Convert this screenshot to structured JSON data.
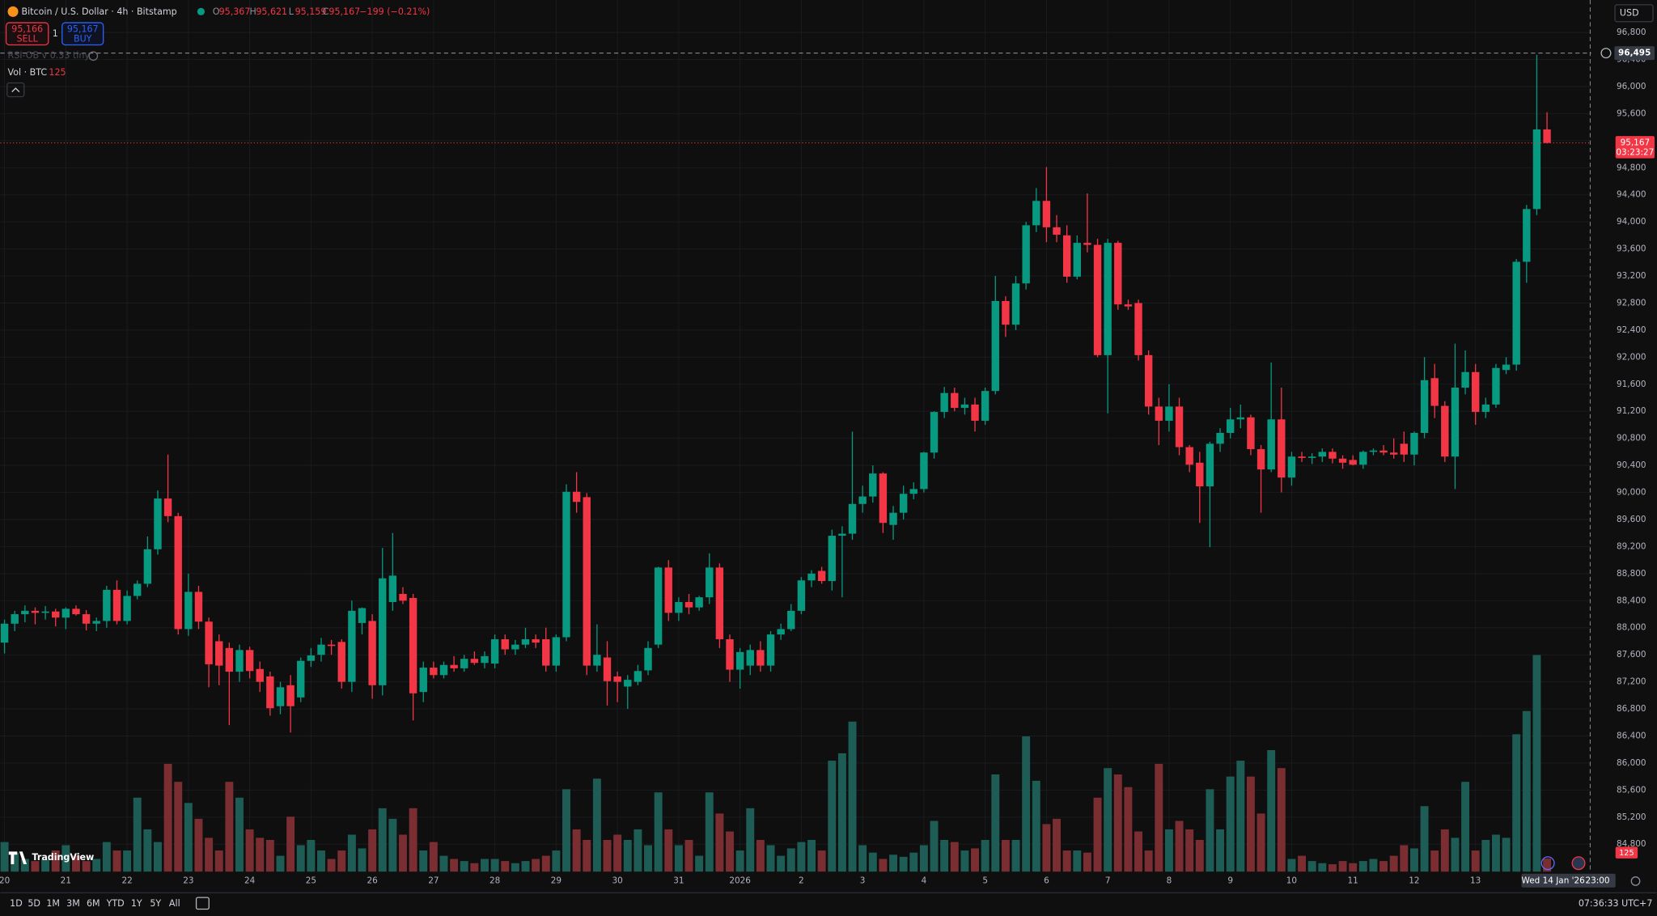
{
  "header": {
    "title": "Bitcoin / U.S. Dollar · 4h · Bitstamp",
    "ohlc": [
      {
        "key": "O",
        "value": "95,367"
      },
      {
        "key": "H",
        "value": "95,621"
      },
      {
        "key": "L",
        "value": "95,159"
      },
      {
        "key": "C",
        "value": "95,167"
      }
    ],
    "change": "−199 (−0.21%)",
    "sell_price": "95,166",
    "sell": "SELL",
    "spread": "1",
    "buy_price": "95,167",
    "buy": "BUY",
    "indicator": "RSI-OB v 0.33 tiny",
    "volume_title": "Vol · BTC",
    "currency": "USD"
  },
  "chart_data": {
    "type": "candlestick",
    "x_labels": [
      "20",
      "21",
      "22",
      "23",
      "24",
      "25",
      "26",
      "27",
      "28",
      "29",
      "30",
      "31",
      "2026",
      "2",
      "3",
      "4",
      "5",
      "6",
      "7",
      "8",
      "9",
      "10",
      "11",
      "12",
      "13"
    ],
    "ohlc": [
      [
        87780,
        88120,
        87620,
        88060
      ],
      [
        88060,
        88250,
        87950,
        88200
      ],
      [
        88200,
        88330,
        88080,
        88250
      ],
      [
        88250,
        88300,
        88050,
        88220
      ],
      [
        88220,
        88320,
        88120,
        88240
      ],
      [
        88240,
        88280,
        88020,
        88150
      ],
      [
        88150,
        88300,
        87980,
        88280
      ],
      [
        88280,
        88330,
        88180,
        88200
      ],
      [
        88200,
        88260,
        87960,
        88060
      ],
      [
        88060,
        88150,
        87950,
        88100
      ],
      [
        88100,
        88620,
        88000,
        88560
      ],
      [
        88560,
        88700,
        88050,
        88100
      ],
      [
        88100,
        88550,
        88050,
        88470
      ],
      [
        88470,
        88700,
        88420,
        88650
      ],
      [
        88650,
        89350,
        88600,
        89160
      ],
      [
        89160,
        90030,
        89080,
        89910
      ],
      [
        89910,
        90560,
        89560,
        89650
      ],
      [
        89650,
        89700,
        87900,
        87980
      ],
      [
        87980,
        88800,
        87880,
        88530
      ],
      [
        88530,
        88620,
        87980,
        88090
      ],
      [
        88090,
        88150,
        87120,
        87460
      ],
      [
        87800,
        87900,
        87150,
        87440
      ],
      [
        87700,
        87780,
        86560,
        87350
      ],
      [
        87350,
        87750,
        87200,
        87670
      ],
      [
        87670,
        87720,
        87250,
        87360
      ],
      [
        87390,
        87500,
        87050,
        87200
      ],
      [
        87280,
        87350,
        86700,
        86810
      ],
      [
        86840,
        87200,
        86720,
        87120
      ],
      [
        87150,
        87300,
        86450,
        86840
      ],
      [
        86970,
        87560,
        86900,
        87510
      ],
      [
        87510,
        87700,
        87420,
        87590
      ],
      [
        87600,
        87850,
        87500,
        87750
      ],
      [
        87750,
        87820,
        87600,
        87730
      ],
      [
        87790,
        87830,
        87100,
        87200
      ],
      [
        87200,
        88400,
        87050,
        88250
      ],
      [
        88070,
        88300,
        87900,
        88290
      ],
      [
        88100,
        88200,
        86950,
        87150
      ],
      [
        87150,
        89180,
        87000,
        88730
      ],
      [
        88380,
        89400,
        88250,
        88770
      ],
      [
        88500,
        88600,
        88350,
        88400
      ],
      [
        88440,
        88500,
        86630,
        87030
      ],
      [
        87050,
        87500,
        86900,
        87410
      ],
      [
        87410,
        87500,
        87250,
        87300
      ],
      [
        87300,
        87500,
        87250,
        87450
      ],
      [
        87450,
        87580,
        87350,
        87400
      ],
      [
        87400,
        87600,
        87350,
        87540
      ],
      [
        87540,
        87650,
        87450,
        87480
      ],
      [
        87480,
        87650,
        87400,
        87580
      ],
      [
        87470,
        87900,
        87400,
        87830
      ],
      [
        87830,
        87900,
        87600,
        87680
      ],
      [
        87680,
        87820,
        87600,
        87750
      ],
      [
        87750,
        88000,
        87700,
        87830
      ],
      [
        87830,
        87900,
        87700,
        87780
      ],
      [
        87830,
        88000,
        87350,
        87440
      ],
      [
        87440,
        87900,
        87350,
        87860
      ],
      [
        87860,
        90120,
        87800,
        90010
      ],
      [
        90010,
        90300,
        89700,
        89860
      ],
      [
        89930,
        89990,
        87300,
        87440
      ],
      [
        87440,
        88050,
        87350,
        87600
      ],
      [
        87560,
        87800,
        86850,
        87210
      ],
      [
        87280,
        87350,
        86900,
        87200
      ],
      [
        87130,
        87300,
        86800,
        87230
      ],
      [
        87200,
        87450,
        87150,
        87360
      ],
      [
        87370,
        87800,
        87300,
        87700
      ],
      [
        87750,
        88900,
        87700,
        88890
      ],
      [
        88890,
        89000,
        88100,
        88220
      ],
      [
        88220,
        88450,
        88100,
        88380
      ],
      [
        88380,
        88500,
        88200,
        88300
      ],
      [
        88300,
        88470,
        88250,
        88450
      ],
      [
        88450,
        89100,
        88350,
        88890
      ],
      [
        88890,
        88950,
        87700,
        87830
      ],
      [
        87830,
        87900,
        87200,
        87380
      ],
      [
        87380,
        87700,
        87100,
        87640
      ],
      [
        87440,
        87750,
        87300,
        87670
      ],
      [
        87670,
        87800,
        87350,
        87440
      ],
      [
        87440,
        87950,
        87350,
        87900
      ],
      [
        87900,
        88060,
        87820,
        87980
      ],
      [
        87980,
        88350,
        87950,
        88250
      ],
      [
        88250,
        88750,
        88200,
        88700
      ],
      [
        88700,
        88850,
        88600,
        88800
      ],
      [
        88840,
        88900,
        88650,
        88690
      ],
      [
        88690,
        89450,
        88550,
        89360
      ],
      [
        89360,
        89500,
        88450,
        89390
      ],
      [
        89390,
        90900,
        89300,
        89830
      ],
      [
        89830,
        90100,
        89700,
        89940
      ],
      [
        89940,
        90400,
        89850,
        90280
      ],
      [
        90280,
        90300,
        89400,
        89550
      ],
      [
        89520,
        89800,
        89300,
        89700
      ],
      [
        89700,
        90100,
        89600,
        89980
      ],
      [
        89980,
        90150,
        89900,
        90050
      ],
      [
        90050,
        90600,
        90000,
        90590
      ],
      [
        90590,
        91200,
        90500,
        91190
      ],
      [
        91190,
        91560,
        91100,
        91470
      ],
      [
        91470,
        91550,
        91200,
        91250
      ],
      [
        91250,
        91400,
        91150,
        91300
      ],
      [
        91300,
        91400,
        90900,
        91060
      ],
      [
        91060,
        91550,
        91000,
        91500
      ],
      [
        91500,
        93200,
        91450,
        92830
      ],
      [
        92830,
        92900,
        92300,
        92480
      ],
      [
        92480,
        93200,
        92400,
        93090
      ],
      [
        93090,
        94000,
        93000,
        93950
      ],
      [
        93950,
        94500,
        93850,
        94310
      ],
      [
        94310,
        94810,
        93700,
        93920
      ],
      [
        93920,
        94100,
        93700,
        93810
      ],
      [
        93800,
        93950,
        93100,
        93190
      ],
      [
        93190,
        93800,
        93150,
        93690
      ],
      [
        93690,
        94420,
        93550,
        93660
      ],
      [
        93660,
        93750,
        92000,
        92030
      ],
      [
        92030,
        93750,
        91170,
        93690
      ],
      [
        93690,
        93720,
        92700,
        92780
      ],
      [
        92780,
        92850,
        92700,
        92750
      ],
      [
        92800,
        92850,
        91950,
        92030
      ],
      [
        92030,
        92100,
        91150,
        91270
      ],
      [
        91270,
        91400,
        90700,
        91060
      ],
      [
        91060,
        91600,
        90900,
        91270
      ],
      [
        91270,
        91400,
        90550,
        90670
      ],
      [
        90670,
        90700,
        90300,
        90410
      ],
      [
        90440,
        90600,
        89550,
        90090
      ],
      [
        90090,
        90750,
        89190,
        90720
      ],
      [
        90720,
        90950,
        90600,
        90880
      ],
      [
        90880,
        91250,
        90800,
        91080
      ],
      [
        91080,
        91300,
        90950,
        91110
      ],
      [
        91110,
        91150,
        90550,
        90640
      ],
      [
        90640,
        90700,
        89700,
        90340
      ],
      [
        90340,
        91920,
        90300,
        91080
      ],
      [
        91080,
        91550,
        90000,
        90220
      ],
      [
        90220,
        90600,
        90100,
        90530
      ],
      [
        90530,
        90600,
        90450,
        90510
      ],
      [
        90510,
        90580,
        90420,
        90530
      ],
      [
        90530,
        90650,
        90450,
        90600
      ],
      [
        90600,
        90650,
        90430,
        90500
      ],
      [
        90500,
        90550,
        90350,
        90440
      ],
      [
        90480,
        90550,
        90400,
        90410
      ],
      [
        90410,
        90620,
        90350,
        90600
      ],
      [
        90600,
        90650,
        90550,
        90620
      ],
      [
        90620,
        90700,
        90550,
        90590
      ],
      [
        90590,
        90800,
        90500,
        90560
      ],
      [
        90720,
        90900,
        90450,
        90560
      ],
      [
        90560,
        90900,
        90400,
        90880
      ],
      [
        90880,
        92000,
        90800,
        91660
      ],
      [
        91690,
        91900,
        91100,
        91280
      ],
      [
        91280,
        91350,
        90450,
        90530
      ],
      [
        90530,
        92200,
        90050,
        91550
      ],
      [
        91550,
        92100,
        91450,
        91780
      ],
      [
        91780,
        91900,
        91000,
        91190
      ],
      [
        91190,
        91400,
        91100,
        91300
      ],
      [
        91300,
        91900,
        91250,
        91840
      ],
      [
        91810,
        92000,
        91750,
        91890
      ],
      [
        91890,
        93450,
        91800,
        93410
      ],
      [
        93410,
        94250,
        93100,
        94190
      ],
      [
        94190,
        96470,
        94100,
        95367
      ],
      [
        95367,
        95621,
        95159,
        95167
      ]
    ],
    "volume": [
      280,
      180,
      120,
      100,
      120,
      200,
      250,
      150,
      100,
      120,
      280,
      200,
      200,
      700,
      400,
      280,
      1020,
      850,
      650,
      500,
      320,
      200,
      850,
      700,
      400,
      320,
      300,
      150,
      520,
      250,
      300,
      200,
      120,
      200,
      350,
      220,
      400,
      600,
      500,
      350,
      600,
      200,
      280,
      150,
      120,
      100,
      80,
      120,
      120,
      100,
      80,
      100,
      120,
      150,
      200,
      780,
      400,
      300,
      880,
      300,
      350,
      300,
      400,
      250,
      750,
      400,
      250,
      300,
      150,
      750,
      550,
      380,
      200,
      600,
      300,
      250,
      150,
      220,
      280,
      300,
      200,
      1050,
      1120,
      1420,
      250,
      180,
      120,
      160,
      140,
      180,
      250,
      480,
      300,
      280,
      200,
      220,
      300,
      920,
      300,
      300,
      1280,
      860,
      450,
      500,
      200,
      200,
      180,
      700,
      980,
      920,
      800,
      380,
      200,
      1020,
      400,
      480,
      400,
      300,
      780,
      400,
      900,
      1050,
      900,
      550,
      1150,
      980,
      120,
      150,
      100,
      80,
      70,
      100,
      80,
      100,
      120,
      100,
      150,
      250,
      220,
      620,
      200,
      400,
      320,
      850,
      200,
      300,
      350,
      320,
      1300,
      1520,
      2050,
      125
    ],
    "ylim": [
      84160,
      97280
    ],
    "yticks": [
      {
        "value": 84800,
        "label": "84,800"
      },
      {
        "value": 85200,
        "label": "85,200"
      },
      {
        "value": 85600,
        "label": "85,600"
      },
      {
        "value": 86000,
        "label": "86,000"
      },
      {
        "value": 86400,
        "label": "86,400"
      },
      {
        "value": 86800,
        "label": "86,800"
      },
      {
        "value": 87200,
        "label": "87,200"
      },
      {
        "value": 87600,
        "label": "87,600"
      },
      {
        "value": 88000,
        "label": "88,000"
      },
      {
        "value": 88400,
        "label": "88,400"
      },
      {
        "value": 88800,
        "label": "88,800"
      },
      {
        "value": 89200,
        "label": "89,200"
      },
      {
        "value": 89600,
        "label": "89,600"
      },
      {
        "value": 90000,
        "label": "90,000"
      },
      {
        "value": 90400,
        "label": "90,400"
      },
      {
        "value": 90800,
        "label": "90,800"
      },
      {
        "value": 91200,
        "label": "91,200"
      },
      {
        "value": 91600,
        "label": "91,600"
      },
      {
        "value": 92000,
        "label": "92,000"
      },
      {
        "value": 92400,
        "label": "92,400"
      },
      {
        "value": 92800,
        "label": "92,800"
      },
      {
        "value": 93200,
        "label": "93,200"
      },
      {
        "value": 93600,
        "label": "93,600"
      },
      {
        "value": 94000,
        "label": "94,000"
      },
      {
        "value": 94400,
        "label": "94,400"
      },
      {
        "value": 94800,
        "label": "94,800"
      },
      {
        "value": 95200,
        "label": "95,200"
      },
      {
        "value": 95600,
        "label": "95,600"
      },
      {
        "value": 96000,
        "label": "96,000"
      },
      {
        "value": 96400,
        "label": "96,400"
      },
      {
        "value": 96800,
        "label": "96,800"
      }
    ],
    "grid": true,
    "up_color": "#089981",
    "down_color": "#f23645",
    "up_volume_color": "#1e5d56",
    "down_volume_color": "#7a2e31",
    "last_price": 95167,
    "last_price_label": "95,167",
    "countdown": "03:23:27",
    "last_volume": 125,
    "last_volume_label": "125",
    "crosshair_price": 96495,
    "crosshair_price_label": "96,495",
    "crosshair_date": "Wed 14 Jan '26",
    "crosshair_time": "23:00"
  },
  "toolbar": {
    "ranges": [
      "1D",
      "5D",
      "1M",
      "3M",
      "6M",
      "YTD",
      "1Y",
      "5Y",
      "All"
    ],
    "clock": "07:36:33 UTC+7",
    "brand": "TradingView"
  }
}
